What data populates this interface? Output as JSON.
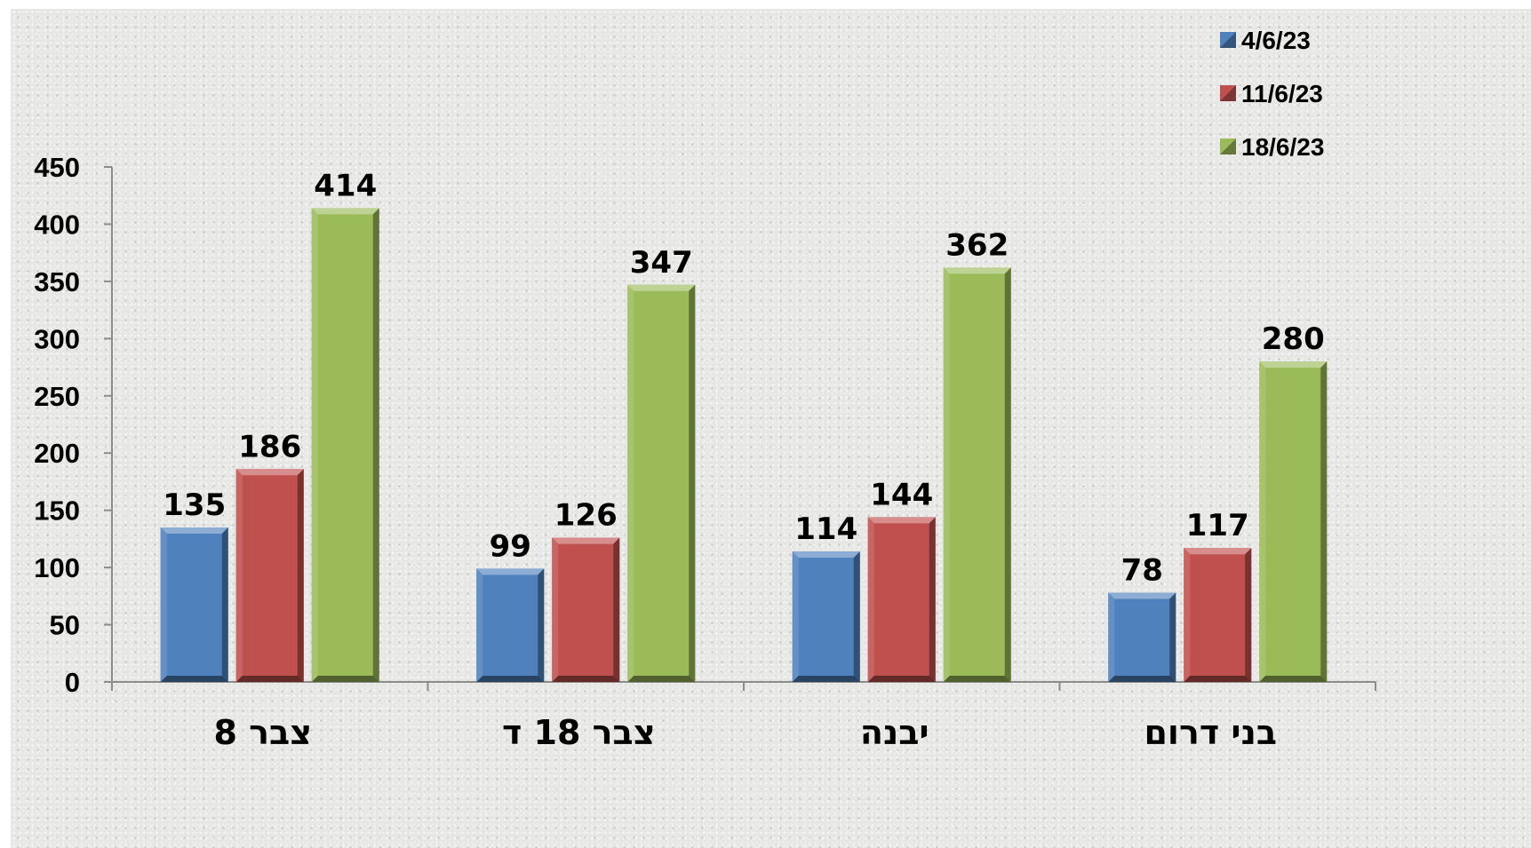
{
  "chart_data": {
    "type": "bar",
    "title": "",
    "xlabel": "",
    "ylabel": "",
    "categories": [
      "צבר 8",
      "צבר 18 ד",
      "יבנה",
      "בני דרום"
    ],
    "series": [
      {
        "name": "4/6/23",
        "color": "#4f81bd",
        "values": [
          135,
          99,
          114,
          78
        ]
      },
      {
        "name": "11/6/23",
        "color": "#c0504d",
        "values": [
          186,
          126,
          144,
          117
        ]
      },
      {
        "name": "18/6/23",
        "color": "#9bbb59",
        "values": [
          414,
          347,
          362,
          280
        ]
      }
    ],
    "ylim": [
      0,
      450
    ],
    "yticks": [
      "0",
      "50",
      "100",
      "150",
      "200",
      "250",
      "300",
      "350",
      "400",
      "450"
    ],
    "grid": false,
    "legend_position": "top-right",
    "data_labels": true
  }
}
